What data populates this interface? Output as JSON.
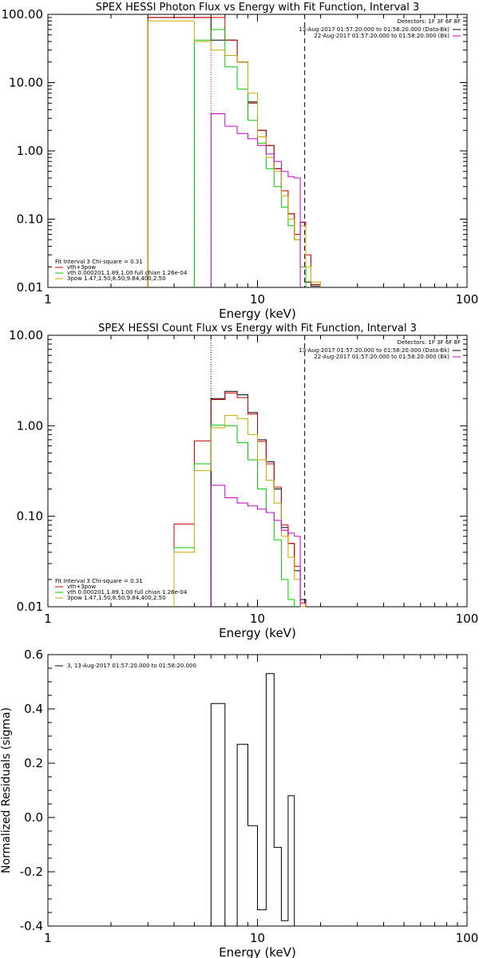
{
  "chart_data": [
    {
      "type": "line",
      "title": "SPEX HESSI Photon Flux vs Energy with Fit Function, Interval 3",
      "xlabel": "Energy (keV)",
      "ylabel": "",
      "xscale": "log",
      "yscale": "log",
      "xlim": [
        1,
        100
      ],
      "ylim": [
        0.01,
        100
      ],
      "xticks": [
        "1",
        "10",
        "100"
      ],
      "yticks": [
        "100.00",
        "10.00",
        "1.00",
        "0.10",
        "0.01"
      ],
      "vlines": [
        {
          "x": 6.0,
          "style": "dotted",
          "color": "#cc00cc"
        },
        {
          "x": 16.8,
          "style": "dashed",
          "color": "#000000"
        }
      ],
      "legend_right": {
        "header": "Detectors: 1F 3F 6F 8F",
        "items": [
          {
            "text": "13-Aug-2017 01:57:20.000 to 01:58:20.000 (Data-Bk)",
            "color": "#000000"
          },
          {
            "text": "22-Aug-2017 01:57:20.000 to 01:58:20.000 (Bk)",
            "color": "#cc00cc"
          }
        ]
      },
      "legend_left": {
        "header": "Fit Interval 3   Chi-square = 0.31",
        "items": [
          {
            "text": "vth+3pow",
            "color": "#cc0000"
          },
          {
            "text": "vth 0.000201,1.89,1.00  full chian 1.26e-04",
            "color": "#00cc00"
          },
          {
            "text": "3pow 1.47,1.50,8.50,9.84,400,2.50",
            "color": "#ccaa00"
          }
        ]
      },
      "edges": [
        3.0,
        4.0,
        5.0,
        6.0,
        7.0,
        8.0,
        9.0,
        10.0,
        11.0,
        12.0,
        13.0,
        14.0,
        15.0,
        16.0,
        17.0,
        18.0,
        20.0
      ],
      "series": [
        {
          "name": "Data-Bk",
          "color": "#000000",
          "values": [
            90,
            90,
            90,
            42,
            42,
            20,
            5.2,
            2.0,
            1.2,
            0.55,
            0.26,
            0.12,
            0.06,
            0.09,
            0.012,
            0.0105
          ]
        },
        {
          "name": "vth+3pow",
          "color": "#cc0000",
          "values": [
            90,
            90,
            90,
            90,
            42,
            20,
            5.0,
            2.0,
            1.2,
            0.55,
            0.26,
            0.12,
            0.06,
            0.09,
            0.03,
            0.011
          ]
        },
        {
          "name": "vth",
          "color": "#00cc00",
          "values": [
            null,
            null,
            42,
            60,
            17,
            8.0,
            2.8,
            1.3,
            0.55,
            0.3,
            0.15,
            0.08,
            0.05,
            0.02,
            null,
            null
          ]
        },
        {
          "name": "3pow",
          "color": "#ccaa00",
          "values": [
            80,
            80,
            40,
            30,
            25,
            20,
            7.0,
            1.6,
            0.8,
            0.5,
            0.22,
            0.1,
            0.05,
            0.08,
            0.02,
            0.012
          ]
        },
        {
          "name": "Bk",
          "color": "#cc00cc",
          "values": [
            null,
            null,
            null,
            3.5,
            2.3,
            1.8,
            1.5,
            1.2,
            0.9,
            0.7,
            0.5,
            0.42,
            0.4,
            null,
            null,
            null
          ]
        }
      ]
    },
    {
      "type": "line",
      "title": "SPEX HESSI Count Flux vs Energy with Fit Function, Interval 3",
      "xlabel": "Energy (keV)",
      "ylabel": "",
      "xscale": "log",
      "yscale": "log",
      "xlim": [
        1,
        100
      ],
      "ylim": [
        0.01,
        10
      ],
      "xticks": [
        "1",
        "10",
        "100"
      ],
      "yticks": [
        "10.00",
        "1.00",
        "0.10",
        "0.01"
      ],
      "vlines": [
        {
          "x": 6.0,
          "style": "dotted",
          "color": "#000000"
        },
        {
          "x": 6.0,
          "style": "solid",
          "color": "#cc00cc"
        },
        {
          "x": 16.8,
          "style": "dashed",
          "color": "#000000"
        }
      ],
      "legend_right": {
        "header": "Detectors: 1F 3F 6F 8F",
        "items": [
          {
            "text": "13-Aug-2017 01:57:20.000 to 01:58:20.000 (Data-Bk)",
            "color": "#000000"
          },
          {
            "text": "22-Aug-2017 01:57:20.000 to 01:58:20.000 (Bk)",
            "color": "#cc00cc"
          }
        ]
      },
      "legend_left": {
        "header": "Fit Interval 3   Chi-square = 0.31",
        "items": [
          {
            "text": "vth+3pow",
            "color": "#cc0000"
          },
          {
            "text": "vth 0.000201,1.89,1.00  full chian 1.26e-04",
            "color": "#00cc00"
          },
          {
            "text": "3pow 1.47,1.50,8.50,9.84,400,2.50",
            "color": "#ccaa00"
          }
        ]
      },
      "edges": [
        4.0,
        5.0,
        6.0,
        7.0,
        8.0,
        9.0,
        10.0,
        11.0,
        12.0,
        13.0,
        14.0,
        15.0,
        16.0,
        17.0
      ],
      "series": [
        {
          "name": "Data-Bk",
          "color": "#000000",
          "values": [
            null,
            null,
            2.0,
            2.4,
            2.2,
            1.4,
            0.7,
            0.4,
            0.2,
            0.075,
            0.05,
            0.025,
            0.012
          ]
        },
        {
          "name": "vth+3pow",
          "color": "#cc0000",
          "values": [
            0.082,
            0.68,
            1.95,
            2.3,
            2.05,
            1.35,
            0.67,
            0.38,
            0.21,
            0.08,
            0.05,
            0.028,
            0.011
          ]
        },
        {
          "name": "vth",
          "color": "#00cc00",
          "values": [
            0.045,
            0.38,
            1.02,
            1.0,
            0.65,
            0.42,
            0.2,
            0.11,
            0.055,
            0.02,
            0.012,
            null,
            null
          ]
        },
        {
          "name": "3pow",
          "color": "#ccaa00",
          "values": [
            0.04,
            0.32,
            0.95,
            1.3,
            1.2,
            0.8,
            0.42,
            0.25,
            0.14,
            0.06,
            0.035,
            0.02,
            0.01
          ]
        },
        {
          "name": "Bk",
          "color": "#cc00cc",
          "values": [
            null,
            null,
            0.22,
            0.16,
            0.14,
            0.13,
            0.12,
            0.11,
            0.09,
            0.07,
            0.065,
            0.06,
            null
          ]
        }
      ]
    },
    {
      "type": "line",
      "title": "",
      "xlabel": "Energy (keV)",
      "ylabel": "Normalized Residuals (sigma)",
      "xscale": "log",
      "yscale": "linear",
      "xlim": [
        1,
        100
      ],
      "ylim": [
        -0.4,
        0.6
      ],
      "xticks": [
        "1",
        "10",
        "100"
      ],
      "yticks": [
        "0.6",
        "0.4",
        "0.2",
        "0.0",
        "-0.2",
        "-0.4"
      ],
      "legend_left": {
        "header": "",
        "items": [
          {
            "text": "3, 13-Aug-2017 01:57:20.000 to 01:58:20.000",
            "color": "#000000"
          }
        ]
      },
      "edges": [
        6.0,
        7.0,
        8.0,
        9.0,
        10.0,
        11.0,
        12.0,
        13.0,
        14.0,
        15.0,
        16.0,
        17.0
      ],
      "series": [
        {
          "name": "",
          "color": "#000000",
          "values": [
            0.42,
            -0.4,
            0.27,
            -0.03,
            -0.34,
            0.53,
            -0.11,
            -0.38,
            0.08,
            null,
            null
          ]
        }
      ]
    }
  ]
}
